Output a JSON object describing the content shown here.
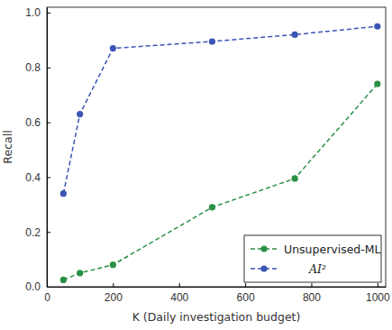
{
  "chart_data": {
    "type": "line",
    "x_label": "K (Daily investigation budget)",
    "y_label": "Recall",
    "x": [
      50,
      100,
      200,
      500,
      750,
      1000
    ],
    "series": [
      {
        "name": "Unsupervised-ML",
        "color": "#2a9045",
        "marker": "circle",
        "line_style": "dashed",
        "values": [
          0.025,
          0.05,
          0.08,
          0.29,
          0.395,
          0.74
        ]
      },
      {
        "name": "AI²",
        "color": "#3a55b4",
        "marker": "circle",
        "line_style": "dashed",
        "values": [
          0.34,
          0.63,
          0.87,
          0.895,
          0.92,
          0.95
        ]
      }
    ],
    "xlim": [
      0,
      1025
    ],
    "ylim": [
      0,
      1.02
    ],
    "xticks": [
      0,
      200,
      400,
      600,
      800,
      1000
    ],
    "yticks": [
      {
        "value": 0,
        "label": "0.0"
      },
      {
        "value": 0.2,
        "label": "0.2"
      },
      {
        "value": 0.4,
        "label": "0.4"
      },
      {
        "value": 0.6,
        "label": "0.6"
      },
      {
        "value": 0.8,
        "label": "0.8"
      },
      {
        "value": 1.0,
        "label": "1.0"
      }
    ],
    "legend": "lower right",
    "grid": false
  }
}
